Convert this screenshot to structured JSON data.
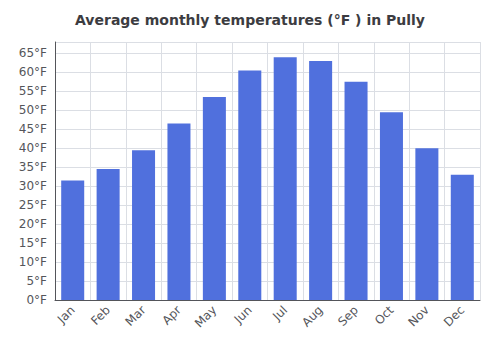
{
  "chart_data": {
    "type": "bar",
    "title": "Average monthly temperatures (°F ) in Pully",
    "categories": [
      "Jan",
      "Feb",
      "Mar",
      "Apr",
      "May",
      "Jun",
      "Jul",
      "Aug",
      "Sep",
      "Oct",
      "Nov",
      "Dec"
    ],
    "values": [
      31.5,
      34.5,
      39.5,
      46.5,
      53.5,
      60.5,
      64.0,
      63.0,
      57.5,
      49.5,
      40.0,
      33.0
    ],
    "ylim": [
      0,
      68
    ],
    "yticks": [
      {
        "value": 0,
        "label": "0°F"
      },
      {
        "value": 5,
        "label": "5°F"
      },
      {
        "value": 10,
        "label": "10°F"
      },
      {
        "value": 15,
        "label": "15°F"
      },
      {
        "value": 20,
        "label": "20°F"
      },
      {
        "value": 25,
        "label": "25°F"
      },
      {
        "value": 30,
        "label": "30°F"
      },
      {
        "value": 35,
        "label": "35°F"
      },
      {
        "value": 40,
        "label": "40°F"
      },
      {
        "value": 45,
        "label": "45°F"
      },
      {
        "value": 50,
        "label": "50°F"
      },
      {
        "value": 55,
        "label": "55°F"
      },
      {
        "value": 60,
        "label": "60°F"
      },
      {
        "value": 65,
        "label": "65°F"
      }
    ],
    "grid": true
  }
}
